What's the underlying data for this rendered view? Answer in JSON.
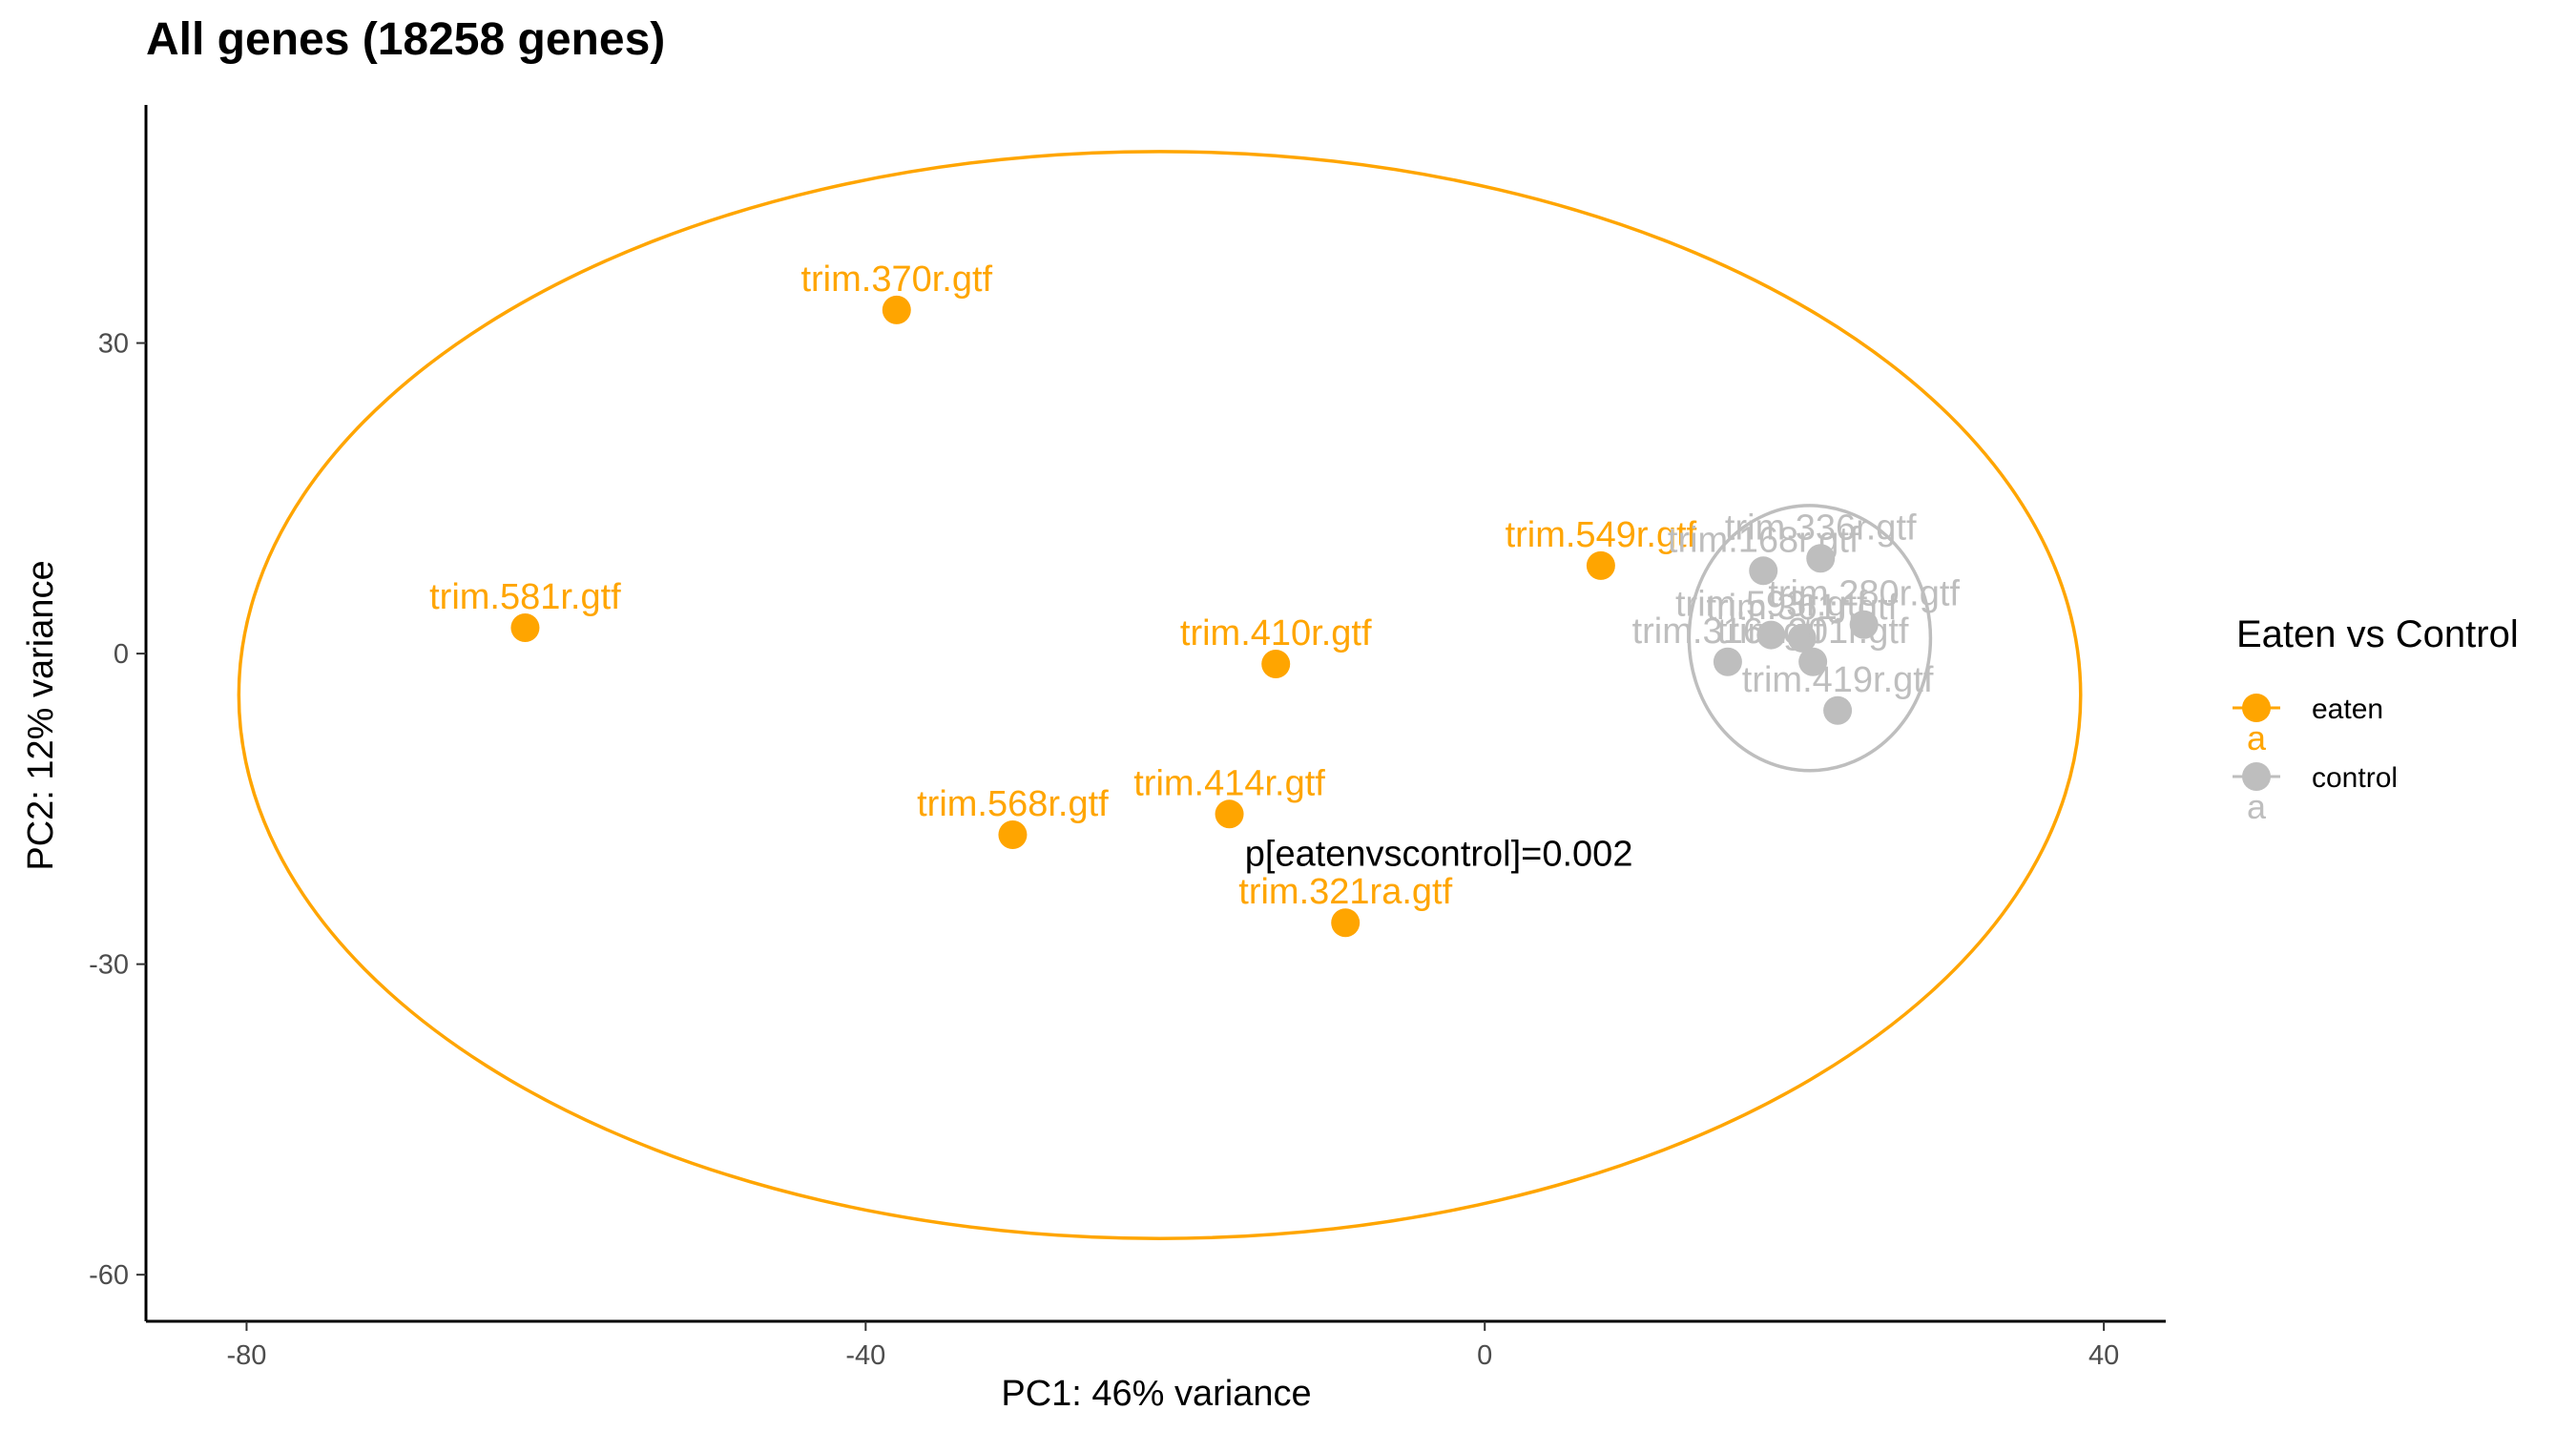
{
  "chart_data": {
    "type": "scatter",
    "title": "All genes (18258 genes)",
    "xlabel": "PC1: 46% variance",
    "ylabel": "PC2: 12% variance",
    "xlim": [
      -86.5,
      44
    ],
    "ylim": [
      -64.5,
      53
    ],
    "x_ticks": [
      -80,
      -40,
      0,
      40
    ],
    "x_tick_labels": [
      "-80",
      "-40",
      "0",
      "40"
    ],
    "y_ticks": [
      -60,
      -30,
      0,
      30
    ],
    "y_tick_labels": [
      "-60",
      "-30",
      "0",
      "30"
    ],
    "grid": false,
    "legend": {
      "title": "Eaten vs Control",
      "position": "right",
      "entries": [
        {
          "label": "eaten",
          "color": "#FFA500",
          "key_letter": "a"
        },
        {
          "label": "control",
          "color": "#BEBEBE",
          "key_letter": "a"
        }
      ]
    },
    "annotation": "p[eatenvscontrol]=0.002",
    "annotation_x": -15.5,
    "annotation_y": -20.5,
    "series": [
      {
        "name": "eaten",
        "color": "#FFA500",
        "points": [
          {
            "label": "trim.370r.gtf",
            "x": -38.0,
            "y": 33.2
          },
          {
            "label": "trim.581r.gtf",
            "x": -62.0,
            "y": 2.5
          },
          {
            "label": "trim.549r.gtf",
            "x": 7.5,
            "y": 8.5
          },
          {
            "label": "trim.410r.gtf",
            "x": -13.5,
            "y": -1.0
          },
          {
            "label": "trim.568r.gtf",
            "x": -30.5,
            "y": -17.5
          },
          {
            "label": "trim.414r.gtf",
            "x": -16.5,
            "y": -15.5
          },
          {
            "label": "trim.321ra.gtf",
            "x": -9.0,
            "y": -26.0
          }
        ]
      },
      {
        "name": "control",
        "color": "#BEBEBE",
        "points": [
          {
            "label": "trim.336r.gtf",
            "x": 21.7,
            "y": 9.2
          },
          {
            "label": "trim.168r.gtf",
            "x": 18.0,
            "y": 8.0
          },
          {
            "label": "trim.280r.gtf",
            "x": 24.5,
            "y": 2.8
          },
          {
            "label": "trim.593r.gtf",
            "x": 18.5,
            "y": 1.8
          },
          {
            "label": "trim.361r.gtf",
            "x": 20.5,
            "y": 1.5
          },
          {
            "label": "trim.316r.gtf",
            "x": 15.7,
            "y": -0.8
          },
          {
            "label": "trim.201r.gtf",
            "x": 21.2,
            "y": -0.8
          },
          {
            "label": "trim.419r.gtf",
            "x": 22.8,
            "y": -5.5
          }
        ]
      }
    ],
    "ellipses": [
      {
        "series": "eaten",
        "color": "#FFA500",
        "cx": -21.0,
        "cy": -4.0,
        "rx": 59.5,
        "ry": 52.5
      },
      {
        "series": "control",
        "color": "#BEBEBE",
        "cx": 21.0,
        "cy": 1.5,
        "rx": 7.8,
        "ry": 12.8
      }
    ]
  }
}
